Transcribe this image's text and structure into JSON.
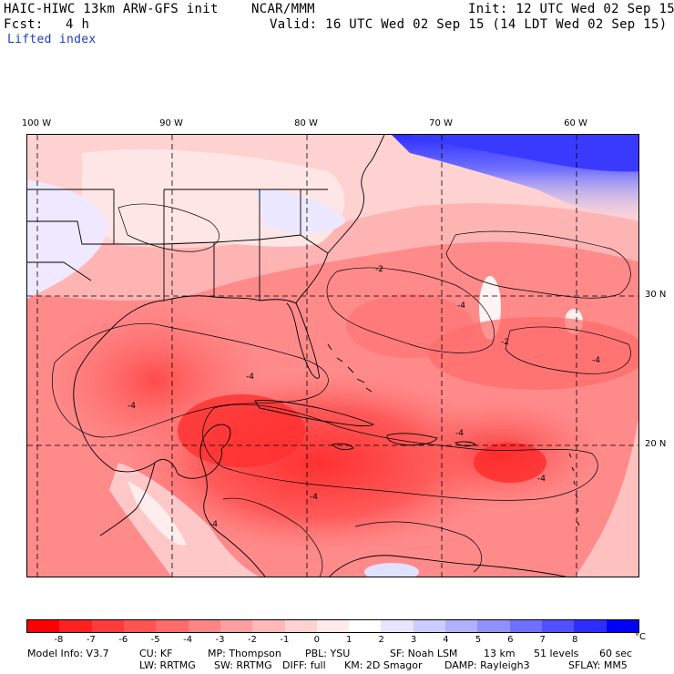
{
  "header": {
    "model": "HAIC-HIWC 13km ARW-GFS init",
    "org": "NCAR/MMM",
    "init": "Init: 12 UTC Wed 02 Sep 15",
    "fcst_label": "Fcst:",
    "fcst_value": "4 h",
    "valid": "Valid: 16 UTC Wed 02 Sep 15 (14 LDT Wed 02 Sep 15)",
    "field": "Lifted index"
  },
  "map": {
    "lon_labels": [
      "100 W",
      "90 W",
      "80 W",
      "70 W",
      "60 W"
    ],
    "lat_labels": [
      "30 N",
      "20 N"
    ],
    "contour_labels": [
      "-2",
      "-4",
      "-4",
      "-4",
      "-4",
      "-2",
      "-4",
      "-4",
      "-4",
      "-4"
    ]
  },
  "colorbar": {
    "ticks": [
      "-8",
      "-7",
      "-6",
      "-5",
      "-4",
      "-3",
      "-2",
      "-1",
      "0",
      "1",
      "2",
      "3",
      "4",
      "5",
      "6",
      "7",
      "8"
    ],
    "unit": "°C",
    "colors": [
      "#ff0000",
      "#ff2020",
      "#ff3a3a",
      "#ff5252",
      "#ff6a6a",
      "#ff8484",
      "#ff9e9e",
      "#ffb8b8",
      "#ffd2d2",
      "#ffeaea",
      "#ffffff",
      "#e6e6ff",
      "#ccccff",
      "#b0b0ff",
      "#9090ff",
      "#7070ff",
      "#5050ff",
      "#2d2dff",
      "#0000ff"
    ]
  },
  "footer": {
    "line1": [
      "Model Info: V3.7",
      "CU: KF",
      "MP: Thompson",
      "PBL: YSU",
      "SF: Noah LSM",
      "13 km",
      "51 levels",
      "60 sec"
    ],
    "line2": [
      "LW: RRTMG",
      "SW: RRTMG",
      "DIFF: full",
      "KM: 2D Smagor",
      "DAMP: Rayleigh3",
      "SFLAY: MM5"
    ]
  }
}
